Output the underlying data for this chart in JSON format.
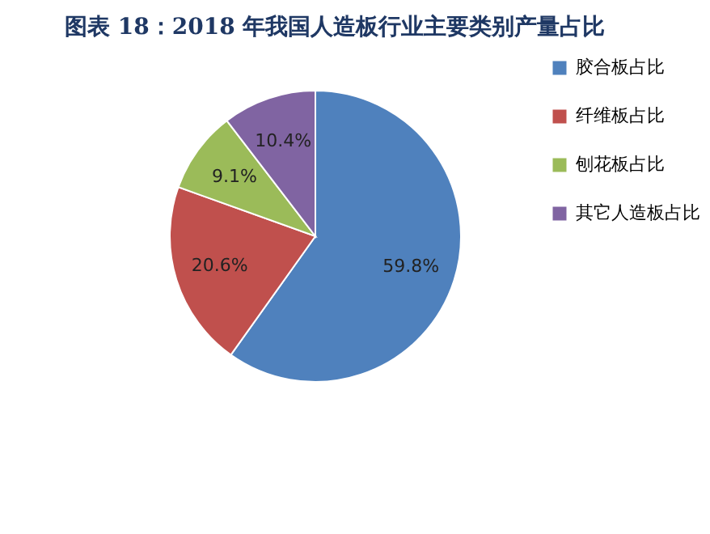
{
  "chart_data": {
    "type": "pie",
    "title": "图表 18：2018 年我国人造板行业主要类别产量占比",
    "categories": [
      "胶合板占比",
      "纤维板占比",
      "刨花板占比",
      "其它人造板占比"
    ],
    "values": [
      59.8,
      20.6,
      9.1,
      10.4
    ],
    "colors": [
      "#4f81bd",
      "#c0504d",
      "#9bbb59",
      "#8064a2"
    ],
    "value_labels": [
      "59.8%",
      "20.6%",
      "9.1%",
      "10.4%"
    ],
    "legend": "right"
  }
}
